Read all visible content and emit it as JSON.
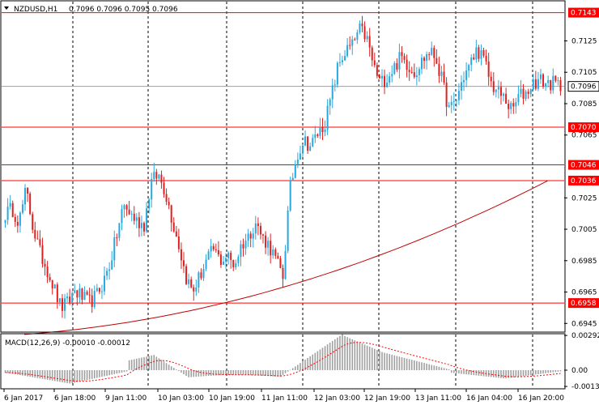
{
  "header": {
    "symbol_label": "NZDUSD,H1",
    "ohlc_label": "0.7096 0.7096 0.7095 0.7096"
  },
  "colors": {
    "bull": "#29a8e0",
    "bear": "#e02020",
    "ma": "#c00000",
    "level": "#ff0000",
    "level_label_bg": "#ff0000",
    "current_price_bg": "#ffffff",
    "hist": "#a0a0a0",
    "signal": "#ff0000",
    "grid": "#000000"
  },
  "chart_data": [
    {
      "type": "candlestick",
      "name": "price",
      "ylim": [
        0.694,
        0.715
      ],
      "y_ticks": [
        "0.7125",
        "0.7105",
        "0.7085",
        "0.7065",
        "0.7025",
        "0.7005",
        "0.6985",
        "0.6965",
        "0.6945"
      ],
      "y_tick_values": [
        0.7125,
        0.7105,
        0.7085,
        0.7065,
        0.7025,
        0.7005,
        0.6985,
        0.6965,
        0.6945
      ],
      "levels": [
        {
          "label": "0.7143",
          "value": 0.7143
        },
        {
          "label": "0.7070",
          "value": 0.707
        },
        {
          "label": "0.7046",
          "value": 0.7046
        },
        {
          "label": "0.7036",
          "value": 0.7036
        },
        {
          "label": "0.6958",
          "value": 0.6958
        }
      ],
      "current_price": {
        "label": "0.7096",
        "value": 0.7096
      },
      "x_labels": [
        "6 Jan 2017",
        "6 Jan 18:00",
        "9 Jan 11:00",
        "10 Jan 03:00",
        "10 Jan 19:00",
        "11 Jan 11:00",
        "12 Jan 03:00",
        "12 Jan 19:00",
        "13 Jan 11:00",
        "16 Jan 04:00",
        "16 Jan 20:00"
      ],
      "close_path": [
        0.7015,
        0.7018,
        0.701,
        0.703,
        0.7006,
        0.699,
        0.698,
        0.6968,
        0.6955,
        0.6958,
        0.6966,
        0.6962,
        0.6958,
        0.6962,
        0.697,
        0.6982,
        0.7,
        0.702,
        0.7015,
        0.701,
        0.7008,
        0.7035,
        0.704,
        0.703,
        0.7012,
        0.6995,
        0.6975,
        0.6965,
        0.6975,
        0.6985,
        0.6992,
        0.6985,
        0.6988,
        0.6982,
        0.6995,
        0.7,
        0.701,
        0.7,
        0.6995,
        0.6985,
        0.6975,
        0.703,
        0.7052,
        0.7062,
        0.7058,
        0.7066,
        0.7072,
        0.709,
        0.711,
        0.7118,
        0.7122,
        0.7132,
        0.7128,
        0.711,
        0.7098,
        0.7102,
        0.7108,
        0.7115,
        0.711,
        0.7105,
        0.7112,
        0.7118,
        0.7115,
        0.7098,
        0.708,
        0.7088,
        0.7102,
        0.711,
        0.712,
        0.7112,
        0.7098,
        0.7092,
        0.7088,
        0.708,
        0.709,
        0.7092,
        0.7098,
        0.71,
        0.7098,
        0.7098,
        0.7096
      ],
      "ma_value_range": [
        0.6938,
        0.7036
      ]
    },
    {
      "type": "macd",
      "name": "MACD(12,26,9)",
      "label": "MACD(12,26,9) -0.00010 -0.00012",
      "ylim": [
        -0.0015,
        0.003
      ],
      "y_ticks": [
        "0.00292",
        "0.00",
        "-0.00137"
      ],
      "y_tick_values": [
        0.00292,
        0.0,
        -0.00137
      ]
    }
  ]
}
